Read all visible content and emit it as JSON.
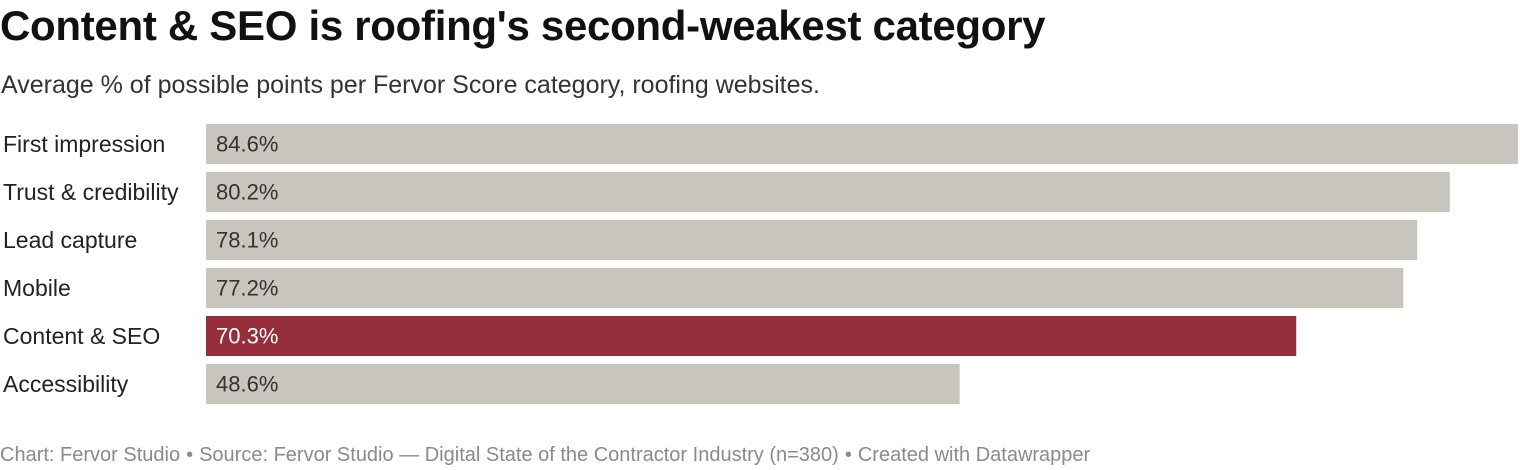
{
  "header": {
    "title": "Content & SEO is roofing's second-weakest category",
    "subtitle": "Average % of possible points per Fervor Score category, roofing websites."
  },
  "footer": {
    "chart_credit": "Chart: Fervor Studio",
    "source": "Source: Fervor Studio — Digital State of the Contractor Industry (n=380)",
    "tool": "Created with Datawrapper",
    "separator": "•"
  },
  "colors": {
    "bar_default": "#c8c5be",
    "bar_highlight": "#962d3a",
    "label_default": "#333333",
    "label_highlight": "#ffffff"
  },
  "chart_data": {
    "type": "bar",
    "orientation": "horizontal",
    "title": "Content & SEO is roofing's second-weakest category",
    "subtitle": "Average % of possible points per Fervor Score category, roofing websites.",
    "categories": [
      "First impression",
      "Trust & credibility",
      "Lead capture",
      "Mobile",
      "Content & SEO",
      "Accessibility"
    ],
    "values": [
      84.6,
      80.2,
      78.1,
      77.2,
      70.3,
      48.6
    ],
    "value_labels": [
      "84.6%",
      "80.2%",
      "78.1%",
      "77.2%",
      "70.3%",
      "48.6%"
    ],
    "highlighted": [
      false,
      false,
      false,
      false,
      true,
      false
    ],
    "xlim": [
      0,
      84.6
    ],
    "grid": false,
    "legend": "none"
  }
}
